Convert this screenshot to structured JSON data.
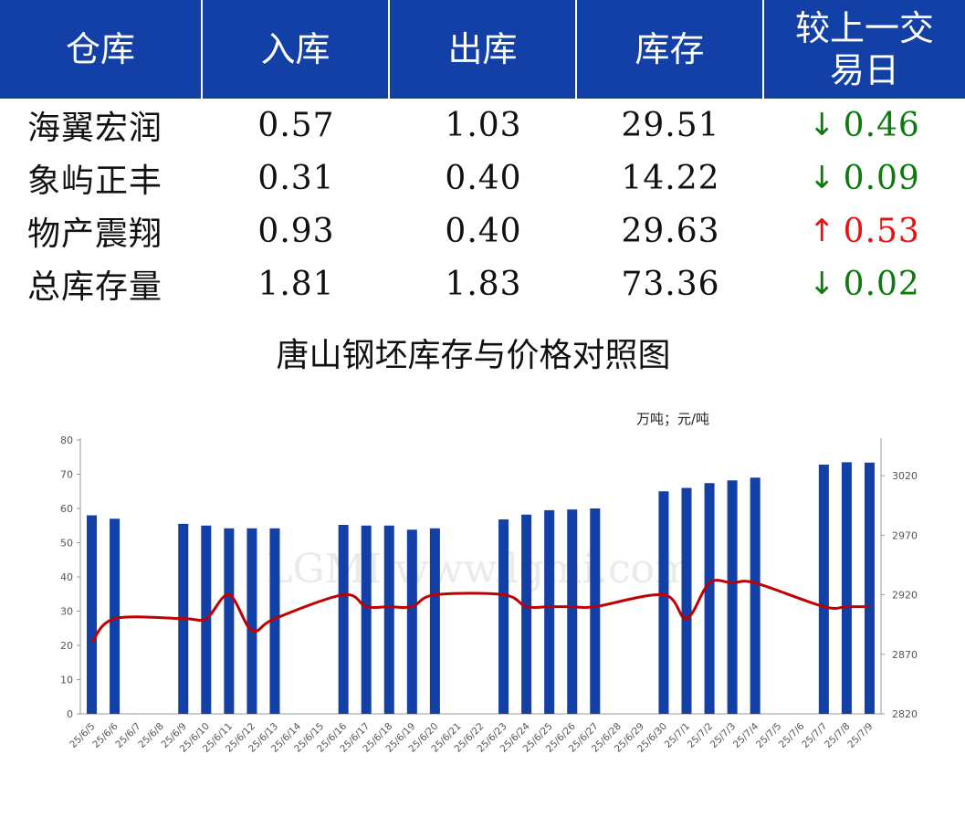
{
  "table": {
    "headers": [
      "仓库",
      "入库",
      "出库",
      "库存",
      "较上一交易日"
    ],
    "rows": [
      {
        "name": "海翼宏润",
        "in": "0.57",
        "out": "1.03",
        "stock": "29.51",
        "change": "0.46",
        "direction": "down"
      },
      {
        "name": "象屿正丰",
        "in": "0.31",
        "out": "0.40",
        "stock": "14.22",
        "change": "0.09",
        "direction": "down"
      },
      {
        "name": "物产震翔",
        "in": "0.93",
        "out": "0.40",
        "stock": "29.63",
        "change": "0.53",
        "direction": "up"
      },
      {
        "name": "总库存量",
        "in": "1.81",
        "out": "1.83",
        "stock": "73.36",
        "change": "0.02",
        "direction": "down"
      }
    ],
    "arrows": {
      "down": "↓",
      "up": "↑"
    },
    "colors": {
      "header_bg": "#1340a6",
      "down": "#0e7a0e",
      "up": "#ee1111"
    }
  },
  "chart_data": {
    "type": "bar+line",
    "title": "唐山钢坯库存与价格对照图",
    "units_label": "万吨；元/吨",
    "watermark": "LGMI www.lgmi.com",
    "categories": [
      "25/6/5",
      "25/6/6",
      "25/6/7",
      "25/6/8",
      "25/6/9",
      "25/6/10",
      "25/6/11",
      "25/6/12",
      "25/6/13",
      "25/6/14",
      "25/6/15",
      "25/6/16",
      "25/6/17",
      "25/6/18",
      "25/6/19",
      "25/6/20",
      "25/6/21",
      "25/6/22",
      "25/6/23",
      "25/6/24",
      "25/6/25",
      "25/6/26",
      "25/6/27",
      "25/6/28",
      "25/6/29",
      "25/6/30",
      "25/7/1",
      "25/7/2",
      "25/7/3",
      "25/7/4",
      "25/7/5",
      "25/7/6",
      "25/7/7",
      "25/7/8",
      "25/7/9"
    ],
    "bars": [
      58,
      57,
      null,
      null,
      55.5,
      55,
      54.2,
      54.2,
      54.2,
      null,
      null,
      55.2,
      55,
      55,
      53.8,
      54.2,
      null,
      null,
      56.8,
      58.2,
      59.5,
      59.7,
      60,
      null,
      null,
      65,
      66,
      67.4,
      68.2,
      69,
      null,
      null,
      72.8,
      73.5,
      73.4
    ],
    "line": [
      2880,
      2900,
      null,
      null,
      2900,
      2900,
      2920,
      2890,
      2900,
      null,
      null,
      2920,
      2910,
      2910,
      2910,
      2920,
      null,
      null,
      2920,
      2910,
      2910,
      2910,
      2910,
      null,
      null,
      2920,
      2900,
      2930,
      2930,
      2930,
      null,
      null,
      2910,
      2910,
      2910
    ],
    "left_axis": {
      "min": 0,
      "max": 80,
      "ticks": [
        0,
        10,
        20,
        30,
        40,
        50,
        60,
        70,
        80
      ]
    },
    "right_axis": {
      "min": 2820,
      "max": 3050,
      "ticks": [
        2820,
        2870,
        2920,
        2970,
        3020
      ]
    },
    "colors": {
      "bar": "#1340a6",
      "line": "#c00000",
      "axis_text": "#555555"
    }
  }
}
